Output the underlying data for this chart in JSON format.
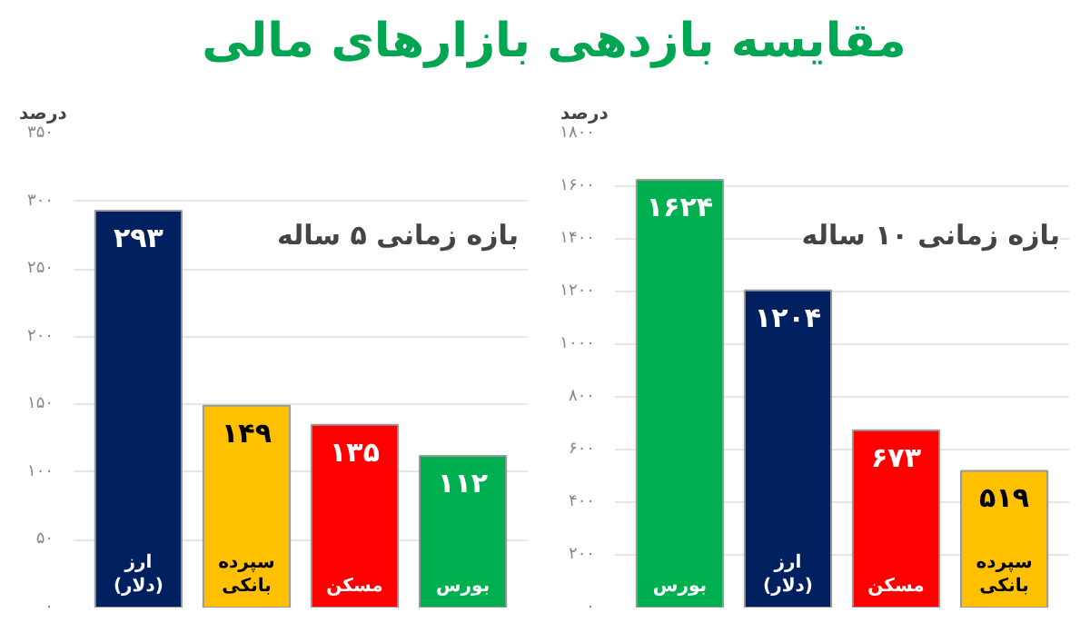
{
  "chart_data": [
    {
      "type": "bar",
      "title": "مقایسه بازدهی بازارهای مالی",
      "subtitle": "بازه زمانی ۵ ساله",
      "ylabel": "درصد",
      "categories": [
        "ارز (دلار)",
        "سپرده بانکی",
        "مسکن",
        "بورس"
      ],
      "values": [
        293,
        149,
        135,
        112
      ],
      "colors": [
        "#002060",
        "#ffc000",
        "#ff0000",
        "#00b050"
      ],
      "value_labels": [
        "۲۹۳",
        "۱۴۹",
        "۱۳۵",
        "۱۱۲"
      ],
      "ylim": [
        0,
        350
      ],
      "yticks": [
        {
          "value": 0,
          "label": "۰"
        },
        {
          "value": 50,
          "label": "۵۰"
        },
        {
          "value": 100,
          "label": "۱۰۰"
        },
        {
          "value": 150,
          "label": "۱۵۰"
        },
        {
          "value": 200,
          "label": "۲۰۰"
        },
        {
          "value": 250,
          "label": "۲۵۰"
        },
        {
          "value": 300,
          "label": "۳۰۰"
        },
        {
          "value": 350,
          "label": "۳۵۰"
        }
      ],
      "grid": "y"
    },
    {
      "type": "bar",
      "subtitle": "بازه زمانی ۱۰ ساله",
      "ylabel": "درصد",
      "categories": [
        "بورس",
        "ارز (دلار)",
        "مسکن",
        "سپرده بانکی"
      ],
      "values": [
        1624,
        1204,
        673,
        519
      ],
      "colors": [
        "#00b050",
        "#002060",
        "#ff0000",
        "#ffc000"
      ],
      "value_labels": [
        "۱۶۲۴",
        "۱۲۰۴",
        "۶۷۳",
        "۵۱۹"
      ],
      "ylim": [
        0,
        1800
      ],
      "yticks": [
        {
          "value": 0,
          "label": "۰"
        },
        {
          "value": 200,
          "label": "۲۰۰"
        },
        {
          "value": 400,
          "label": "۴۰۰"
        },
        {
          "value": 600,
          "label": "۶۰۰"
        },
        {
          "value": 800,
          "label": "۸۰۰"
        },
        {
          "value": 1000,
          "label": "۱۰۰۰"
        },
        {
          "value": 1200,
          "label": "۱۲۰۰"
        },
        {
          "value": 1400,
          "label": "۱۴۰۰"
        },
        {
          "value": 1600,
          "label": "۱۶۰۰"
        },
        {
          "value": 1800,
          "label": "۱۸۰۰"
        }
      ],
      "grid": "y"
    }
  ]
}
